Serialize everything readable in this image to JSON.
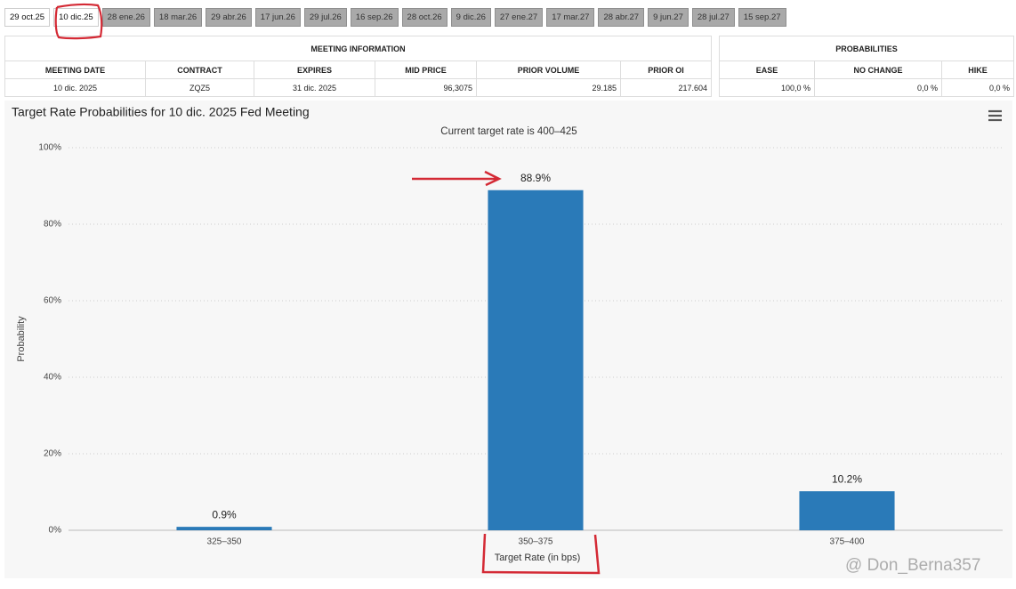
{
  "tabs": [
    "29 oct.25",
    "10 dic.25",
    "28 ene.26",
    "18 mar.26",
    "29 abr.26",
    "17 jun.26",
    "29 jul.26",
    "16 sep.26",
    "28 oct.26",
    "9 dic.26",
    "27 ene.27",
    "17 mar.27",
    "28 abr.27",
    "9 jun.27",
    "28 jul.27",
    "15 sep.27"
  ],
  "meeting_information": {
    "title": "MEETING INFORMATION",
    "columns": [
      "MEETING DATE",
      "CONTRACT",
      "EXPIRES",
      "MID PRICE",
      "PRIOR VOLUME",
      "PRIOR OI"
    ],
    "row": [
      "10 dic. 2025",
      "ZQZ5",
      "31 dic. 2025",
      "96,3075",
      "29.185",
      "217.604"
    ]
  },
  "probabilities": {
    "title": "PROBABILITIES",
    "columns": [
      "EASE",
      "NO CHANGE",
      "HIKE"
    ],
    "row": [
      "100,0 %",
      "0,0 %",
      "0,0 %"
    ]
  },
  "chart_data": {
    "type": "bar",
    "title": "Target Rate Probabilities for 10 dic. 2025 Fed Meeting",
    "subtitle": "Current target rate is 400–425",
    "categories": [
      "325–350",
      "350–375",
      "375–400"
    ],
    "values": [
      0.9,
      88.9,
      10.2
    ],
    "value_labels": [
      "0.9%",
      "88.9%",
      "10.2%"
    ],
    "color": "#2a7ab8",
    "ylim": [
      0,
      100
    ],
    "yticks": [
      {
        "value": 0,
        "label": "0%"
      },
      {
        "value": 20,
        "label": "20%"
      },
      {
        "value": 40,
        "label": "40%"
      },
      {
        "value": 60,
        "label": "60%"
      },
      {
        "value": 80,
        "label": "80%"
      },
      {
        "value": 100,
        "label": "100%"
      }
    ],
    "ylabel": "Probability",
    "xlabel": "Target Rate (in bps)",
    "grid": true
  },
  "watermark": "@ Don_Berna357"
}
